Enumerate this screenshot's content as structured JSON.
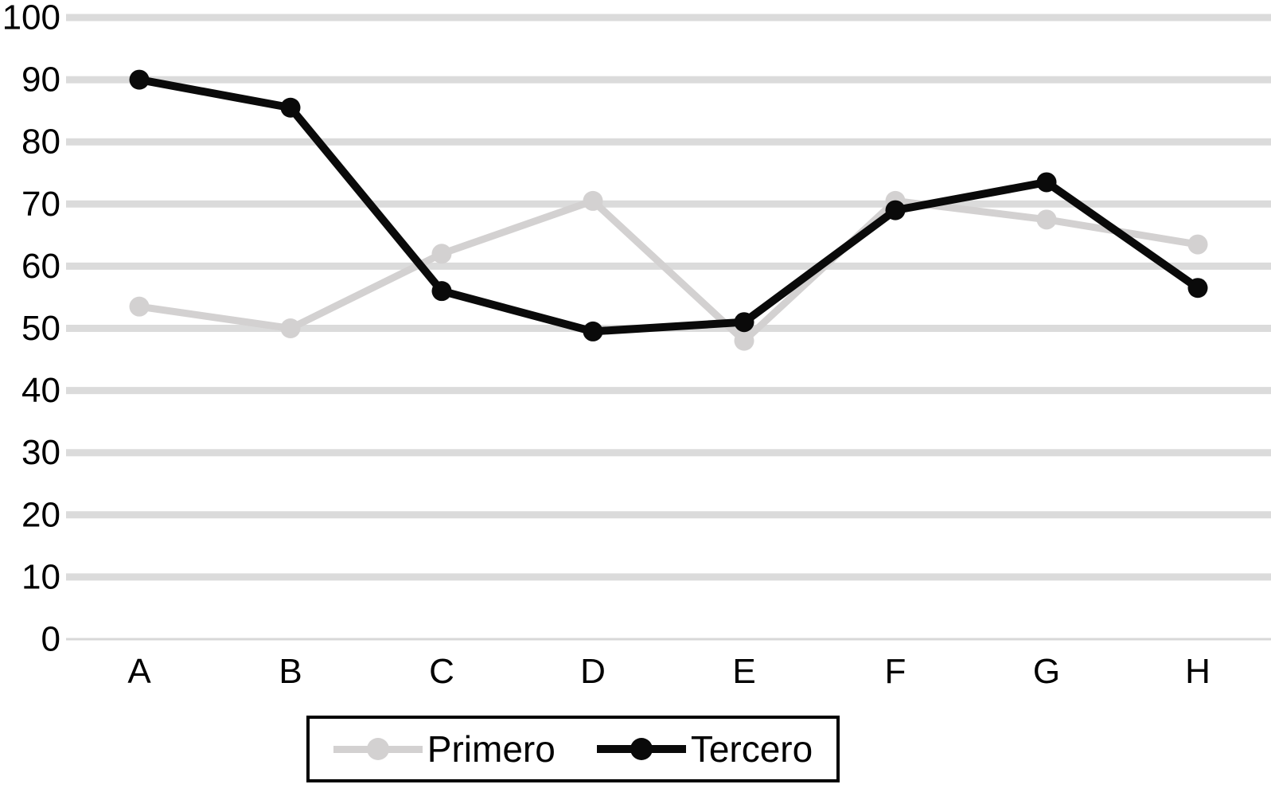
{
  "chart_data": {
    "type": "line",
    "title": "",
    "xlabel": "",
    "ylabel": "",
    "categories": [
      "A",
      "B",
      "C",
      "D",
      "E",
      "F",
      "G",
      "H"
    ],
    "series": [
      {
        "name": "Primero",
        "color": "#d3d1d1",
        "values": [
          53.5,
          50,
          62,
          70.5,
          48,
          70.5,
          67.5,
          63.5
        ]
      },
      {
        "name": "Tercero",
        "color": "#0a0a0a",
        "values": [
          90,
          85.5,
          56,
          49.5,
          51,
          69,
          73.5,
          56.5
        ]
      }
    ],
    "ylim": [
      0,
      100
    ],
    "ytick_step": 10,
    "ytick_labels": [
      "0",
      "10",
      "20",
      "30",
      "40",
      "50",
      "60",
      "70",
      "80",
      "90",
      "100"
    ],
    "grid": "horizontal-only",
    "gridline_color": "#dbdbdb",
    "axis_line_color": "#d8d8d8",
    "text_color": "#000000",
    "legend_position": "bottom",
    "legend_border_color": "#000000"
  }
}
